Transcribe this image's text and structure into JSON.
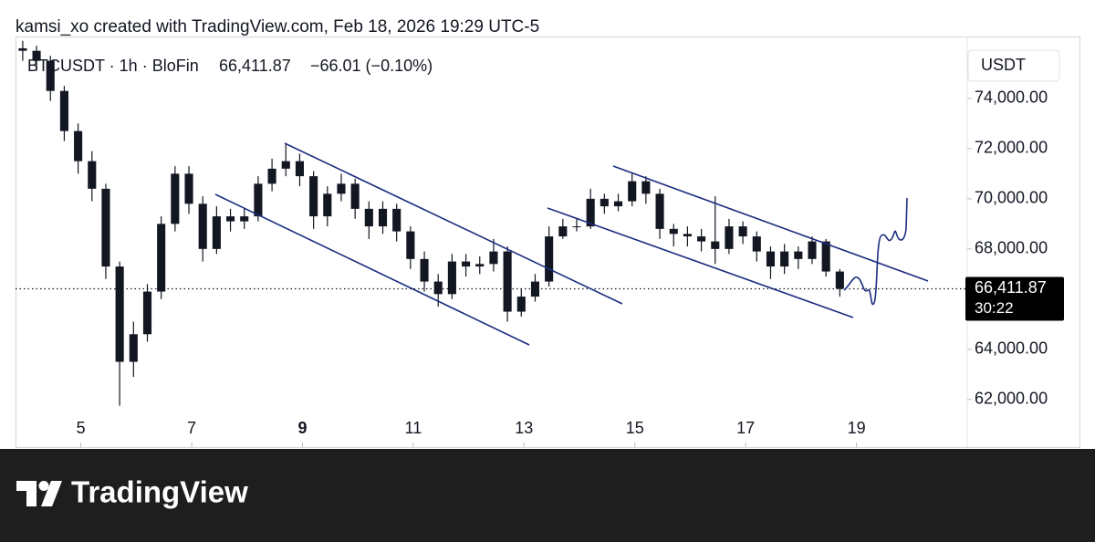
{
  "chart_data": {
    "type": "candlestick",
    "attribution": "kamsi_xo created with TradingView.com, Feb 18, 2026 19:29 UTC-5",
    "title": "BTCUSDT · 1h · BloFin",
    "last_price": {
      "value": 66411.87,
      "label": "66,411.87"
    },
    "change": "−66.01 (−0.10%)",
    "countdown": "30:22",
    "currency": "USDT",
    "footer": "TradingView",
    "color_up": "#131722",
    "color_down": "#131722",
    "x": [
      3.95,
      4.2,
      4.45,
      4.7,
      4.95,
      5.2,
      5.45,
      5.7,
      5.95,
      6.2,
      6.45,
      6.7,
      6.95,
      7.2,
      7.45,
      7.7,
      7.95,
      8.2,
      8.45,
      8.7,
      8.95,
      9.2,
      9.45,
      9.7,
      9.95,
      10.2,
      10.45,
      10.7,
      10.95,
      11.2,
      11.45,
      11.7,
      11.95,
      12.2,
      12.45,
      12.7,
      12.95,
      13.2,
      13.45,
      13.7,
      13.95,
      14.2,
      14.45,
      14.7,
      14.95,
      15.2,
      15.45,
      15.7,
      15.95,
      16.2,
      16.45,
      16.7,
      16.95,
      17.2,
      17.45,
      17.7,
      17.95,
      18.2,
      18.45,
      18.7
    ],
    "open": [
      76000,
      75900,
      75500,
      74300,
      72700,
      71500,
      70400,
      67300,
      63500,
      64600,
      66300,
      69000,
      71000,
      69800,
      68000,
      69300,
      69100,
      69300,
      70600,
      71200,
      71500,
      70900,
      69300,
      70200,
      70600,
      69600,
      68900,
      69600,
      68700,
      67600,
      66700,
      66200,
      67500,
      67300,
      67400,
      67900,
      65500,
      66100,
      66700,
      68500,
      68900,
      68900,
      70000,
      69700,
      69900,
      70700,
      70200,
      68800,
      68600,
      68500,
      68300,
      68000,
      68900,
      68500,
      67900,
      67300,
      67900,
      67600,
      68300,
      67100
    ],
    "high": [
      76300,
      76100,
      75700,
      74500,
      73000,
      71900,
      70600,
      67500,
      65100,
      66600,
      69300,
      71300,
      71300,
      70100,
      69700,
      69600,
      69600,
      70900,
      71600,
      72180,
      71800,
      71100,
      70500,
      71000,
      70800,
      69900,
      69900,
      69800,
      68900,
      67900,
      67000,
      67800,
      67800,
      67700,
      68400,
      68100,
      66400,
      67000,
      68900,
      69200,
      69200,
      70400,
      70200,
      70200,
      71000,
      70900,
      70400,
      69000,
      68900,
      68800,
      70100,
      69200,
      69100,
      68700,
      68100,
      68200,
      68100,
      68500,
      68400,
      67200
    ],
    "low": [
      75500,
      75100,
      73900,
      72300,
      71000,
      69900,
      66800,
      61750,
      62900,
      64300,
      66000,
      68700,
      69400,
      67500,
      67800,
      68700,
      68800,
      69100,
      70300,
      70900,
      70500,
      68800,
      68900,
      69900,
      69200,
      68400,
      68600,
      68300,
      67200,
      66300,
      65700,
      66000,
      66900,
      67000,
      67100,
      65100,
      65300,
      65900,
      66500,
      68400,
      68700,
      68800,
      69400,
      69500,
      69700,
      69800,
      68400,
      68100,
      68100,
      67900,
      67400,
      67800,
      68200,
      67500,
      66800,
      67000,
      67200,
      67400,
      66900,
      66100
    ],
    "close": [
      75900,
      75500,
      74300,
      72700,
      71500,
      70400,
      67300,
      63500,
      64600,
      66300,
      69000,
      71000,
      69800,
      68000,
      69300,
      69100,
      69300,
      70600,
      71200,
      71500,
      70900,
      69300,
      70200,
      70600,
      69600,
      68900,
      69600,
      68700,
      67600,
      66700,
      66200,
      67500,
      67300,
      67400,
      67900,
      65500,
      66100,
      66700,
      68500,
      68900,
      68900,
      70000,
      69700,
      69900,
      70700,
      70200,
      68800,
      68600,
      68500,
      68300,
      68000,
      68900,
      68500,
      67900,
      67300,
      67900,
      67600,
      68300,
      67100,
      66412
    ],
    "xlim": [
      3.82,
      21
    ],
    "xticks": [
      5,
      7,
      9,
      11,
      13,
      15,
      17,
      19
    ],
    "xtick_bold": [
      9
    ],
    "ylim": [
      60100,
      76470
    ],
    "yticks": [
      {
        "value": 62000,
        "label": "62,000.00"
      },
      {
        "value": 64000,
        "label": "64,000.00"
      },
      {
        "value": 66000,
        "label": "66,000.00"
      },
      {
        "value": 68000,
        "label": "68,000.00"
      },
      {
        "value": 70000,
        "label": "70,000.00"
      },
      {
        "value": 72000,
        "label": "72,000.00"
      },
      {
        "value": 74000,
        "label": "74,000.00"
      }
    ]
  }
}
